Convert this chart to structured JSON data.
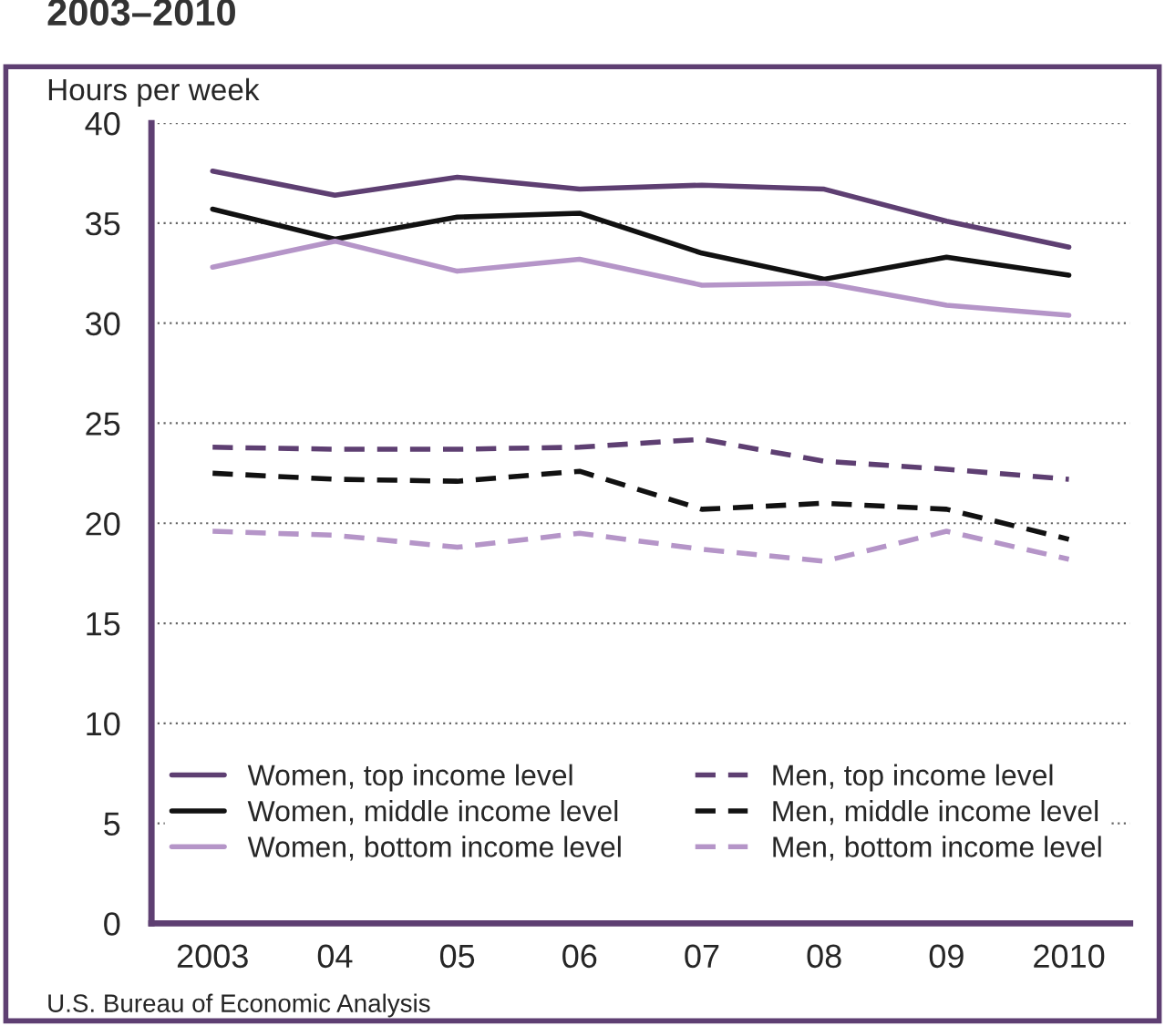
{
  "chart_data": {
    "type": "line",
    "title": "2003–2010",
    "ylabel": "Hours per week",
    "categories": [
      "2003",
      "04",
      "05",
      "06",
      "07",
      "08",
      "09",
      "2010"
    ],
    "series": [
      {
        "name": "Women, top income level",
        "color": "#5e3f72",
        "line_style": "solid",
        "values": [
          37.6,
          36.4,
          37.3,
          36.7,
          36.9,
          36.7,
          35.1,
          33.8
        ]
      },
      {
        "name": "Women, middle income level",
        "color": "#111111",
        "line_style": "solid",
        "values": [
          35.7,
          34.2,
          35.3,
          35.5,
          33.5,
          32.2,
          33.3,
          32.4
        ]
      },
      {
        "name": "Women, bottom income level",
        "color": "#b595c8",
        "line_style": "solid",
        "values": [
          32.8,
          34.1,
          32.6,
          33.2,
          31.9,
          32.0,
          30.9,
          30.4
        ]
      },
      {
        "name": "Men, top income level",
        "color": "#5e3f72",
        "line_style": "dashed",
        "values": [
          23.8,
          23.7,
          23.7,
          23.8,
          24.2,
          23.1,
          22.7,
          22.2
        ]
      },
      {
        "name": "Men, middle income level",
        "color": "#111111",
        "line_style": "dashed",
        "values": [
          22.5,
          22.2,
          22.1,
          22.6,
          20.7,
          21.0,
          20.7,
          19.2
        ]
      },
      {
        "name": "Men, bottom income level",
        "color": "#b595c8",
        "line_style": "dashed",
        "values": [
          19.6,
          19.4,
          18.8,
          19.5,
          18.7,
          18.1,
          19.6,
          18.2
        ]
      }
    ],
    "ylim": [
      0,
      40
    ],
    "yticks": [
      0,
      5,
      10,
      15,
      20,
      25,
      30,
      35,
      40
    ],
    "grid": "y",
    "legend": "bottom left",
    "marker": "none",
    "annotations": [
      "U.S. Bureau of Economic Analysis"
    ]
  }
}
